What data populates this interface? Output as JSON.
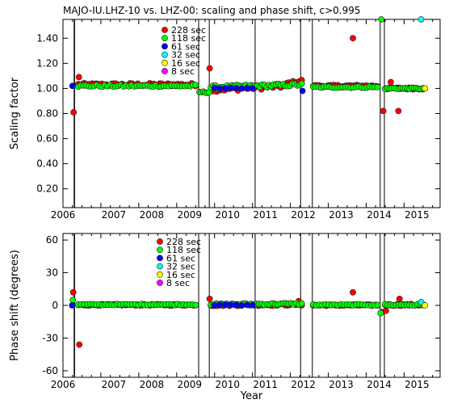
{
  "chart_data": [
    {
      "type": "scatter",
      "title": "MAJO-IU.LHZ-10 vs. LHZ-00: scaling and phase shift, c>0.995",
      "ylabel": "Scaling factor",
      "xlabel": "",
      "xlim": [
        2006.0,
        2015.95
      ],
      "ylim": [
        0.05,
        1.55
      ],
      "yticks": [
        "0.20",
        "0.40",
        "0.60",
        "0.80",
        "1.00",
        "1.20",
        "1.40"
      ],
      "ytick_values": [
        0.2,
        0.4,
        0.6,
        0.8,
        1.0,
        1.2,
        1.4
      ],
      "xticks": [
        "2006",
        "2007",
        "2008",
        "2009",
        "2010",
        "2011",
        "2012",
        "2013",
        "2014",
        "2015"
      ],
      "xtick_values": [
        2006,
        2007,
        2008,
        2009,
        2010,
        2011,
        2012,
        2013,
        2014,
        2015
      ],
      "vlines": [
        2006.3,
        2009.58,
        2009.86,
        2011.07,
        2012.27,
        2012.58,
        2014.37,
        2014.48
      ],
      "legend_position": "top-center",
      "legend": [
        {
          "label": "228 sec",
          "color": "#ff0000"
        },
        {
          "label": "118 sec",
          "color": "#00ff00"
        },
        {
          "label": "61 sec",
          "color": "#0000ff"
        },
        {
          "label": "32 sec",
          "color": "#00ffff"
        },
        {
          "label": "16 sec",
          "color": "#ffff00"
        },
        {
          "label": "8 sec",
          "color": "#ff00ff"
        }
      ],
      "series": [
        {
          "name": "228 sec",
          "color": "#ff0000",
          "segments": [
            {
              "x0": 2006.4,
              "x1": 2009.5,
              "y0": 1.03,
              "y1": 1.03,
              "n": 60,
              "jitter": 0.012
            },
            {
              "x0": 2009.9,
              "x1": 2011.9,
              "y0": 0.99,
              "y1": 1.02,
              "n": 40,
              "jitter": 0.018
            },
            {
              "x0": 2011.9,
              "x1": 2012.3,
              "y0": 1.04,
              "y1": 1.06,
              "n": 8,
              "jitter": 0.01
            },
            {
              "x0": 2012.6,
              "x1": 2014.3,
              "y0": 1.02,
              "y1": 1.02,
              "n": 35,
              "jitter": 0.008
            },
            {
              "x0": 2014.5,
              "x1": 2015.5,
              "y0": 1.0,
              "y1": 1.0,
              "n": 20,
              "jitter": 0.008
            }
          ],
          "points": [
            [
              2006.28,
              0.81
            ],
            [
              2006.42,
              1.09
            ],
            [
              2009.87,
              1.16
            ],
            [
              2013.65,
              1.4
            ],
            [
              2014.45,
              0.82
            ],
            [
              2014.85,
              0.82
            ],
            [
              2014.65,
              1.05
            ]
          ]
        },
        {
          "name": "118 sec",
          "color": "#00ff00",
          "segments": [
            {
              "x0": 2006.4,
              "x1": 2009.5,
              "y0": 1.02,
              "y1": 1.02,
              "n": 45,
              "jitter": 0.008
            },
            {
              "x0": 2009.6,
              "x1": 2009.85,
              "y0": 0.97,
              "y1": 0.97,
              "n": 6,
              "jitter": 0.006
            },
            {
              "x0": 2009.9,
              "x1": 2012.3,
              "y0": 1.01,
              "y1": 1.03,
              "n": 40,
              "jitter": 0.012
            },
            {
              "x0": 2012.6,
              "x1": 2014.3,
              "y0": 1.01,
              "y1": 1.01,
              "n": 25,
              "jitter": 0.006
            },
            {
              "x0": 2014.5,
              "x1": 2015.5,
              "y0": 1.0,
              "y1": 1.0,
              "n": 18,
              "jitter": 0.006
            }
          ],
          "points": [
            [
              2014.4,
              1.55
            ]
          ]
        },
        {
          "name": "61 sec",
          "color": "#0000ff",
          "segments": [
            {
              "x0": 2010.0,
              "x1": 2011.0,
              "y0": 1.0,
              "y1": 1.0,
              "n": 8,
              "jitter": 0.006
            }
          ],
          "points": [
            [
              2006.25,
              1.02
            ],
            [
              2012.32,
              0.98
            ]
          ]
        },
        {
          "name": "32 sec",
          "color": "#00ffff",
          "segments": [],
          "points": [
            [
              2015.45,
              1.55
            ]
          ]
        },
        {
          "name": "16 sec",
          "color": "#ffff00",
          "segments": [],
          "points": [
            [
              2015.55,
              1.0
            ]
          ]
        },
        {
          "name": "8 sec",
          "color": "#ff00ff",
          "segments": [],
          "points": []
        }
      ]
    },
    {
      "type": "scatter",
      "title": "",
      "ylabel": "Phase shift (degrees)",
      "xlabel": "Year",
      "xlim": [
        2006.0,
        2015.95
      ],
      "ylim": [
        -66,
        66
      ],
      "yticks": [
        "-60",
        "-30",
        "0",
        "30",
        "60"
      ],
      "ytick_values": [
        -60,
        -30,
        0,
        30,
        60
      ],
      "xticks": [
        "2006",
        "2007",
        "2008",
        "2009",
        "2010",
        "2011",
        "2012",
        "2013",
        "2014",
        "2015"
      ],
      "xtick_values": [
        2006,
        2007,
        2008,
        2009,
        2010,
        2011,
        2012,
        2013,
        2014,
        2015
      ],
      "vlines": [
        2006.3,
        2009.58,
        2009.86,
        2011.07,
        2012.27,
        2012.58,
        2014.37,
        2014.48
      ],
      "legend_position": "top-center",
      "legend": [
        {
          "label": "228 sec",
          "color": "#ff0000"
        },
        {
          "label": "118 sec",
          "color": "#00ff00"
        },
        {
          "label": "61 sec",
          "color": "#0000ff"
        },
        {
          "label": "32 sec",
          "color": "#00ffff"
        },
        {
          "label": "16 sec",
          "color": "#ffff00"
        },
        {
          "label": "8 sec",
          "color": "#ff00ff"
        }
      ],
      "series": [
        {
          "name": "228 sec",
          "color": "#ff0000",
          "segments": [
            {
              "x0": 2006.4,
              "x1": 2009.5,
              "y0": 0.5,
              "y1": 0.5,
              "n": 60,
              "jitter": 0.6
            },
            {
              "x0": 2009.9,
              "x1": 2012.3,
              "y0": 0.3,
              "y1": 0.8,
              "n": 45,
              "jitter": 0.9
            },
            {
              "x0": 2012.6,
              "x1": 2014.3,
              "y0": 0.2,
              "y1": 0.2,
              "n": 35,
              "jitter": 0.6
            },
            {
              "x0": 2014.5,
              "x1": 2015.5,
              "y0": 0.5,
              "y1": 0.5,
              "n": 20,
              "jitter": 0.8
            }
          ],
          "points": [
            [
              2006.27,
              12
            ],
            [
              2006.43,
              -36
            ],
            [
              2009.87,
              6
            ],
            [
              2013.65,
              12
            ],
            [
              2014.42,
              -6
            ],
            [
              2014.52,
              -5
            ],
            [
              2014.88,
              6
            ],
            [
              2012.22,
              4
            ]
          ]
        },
        {
          "name": "118 sec",
          "color": "#00ff00",
          "segments": [
            {
              "x0": 2006.4,
              "x1": 2009.5,
              "y0": 0.8,
              "y1": 0.8,
              "n": 40,
              "jitter": 0.5
            },
            {
              "x0": 2009.9,
              "x1": 2012.3,
              "y0": 1.0,
              "y1": 1.5,
              "n": 35,
              "jitter": 0.8
            },
            {
              "x0": 2012.6,
              "x1": 2014.3,
              "y0": 0.5,
              "y1": 0.5,
              "n": 22,
              "jitter": 0.5
            },
            {
              "x0": 2014.5,
              "x1": 2015.5,
              "y0": 0.5,
              "y1": 0.5,
              "n": 15,
              "jitter": 0.6
            }
          ],
          "points": [
            [
              2006.26,
              5
            ],
            [
              2014.38,
              -7
            ]
          ]
        },
        {
          "name": "61 sec",
          "color": "#0000ff",
          "segments": [
            {
              "x0": 2010.0,
              "x1": 2011.0,
              "y0": 0.5,
              "y1": 0.5,
              "n": 8,
              "jitter": 0.4
            }
          ],
          "points": [
            [
              2006.24,
              0
            ]
          ]
        },
        {
          "name": "32 sec",
          "color": "#00ffff",
          "segments": [],
          "points": [
            [
              2015.45,
              3
            ]
          ]
        },
        {
          "name": "16 sec",
          "color": "#ffff00",
          "segments": [],
          "points": [
            [
              2015.55,
              0
            ]
          ]
        },
        {
          "name": "8 sec",
          "color": "#ff00ff",
          "segments": [],
          "points": []
        }
      ]
    }
  ]
}
